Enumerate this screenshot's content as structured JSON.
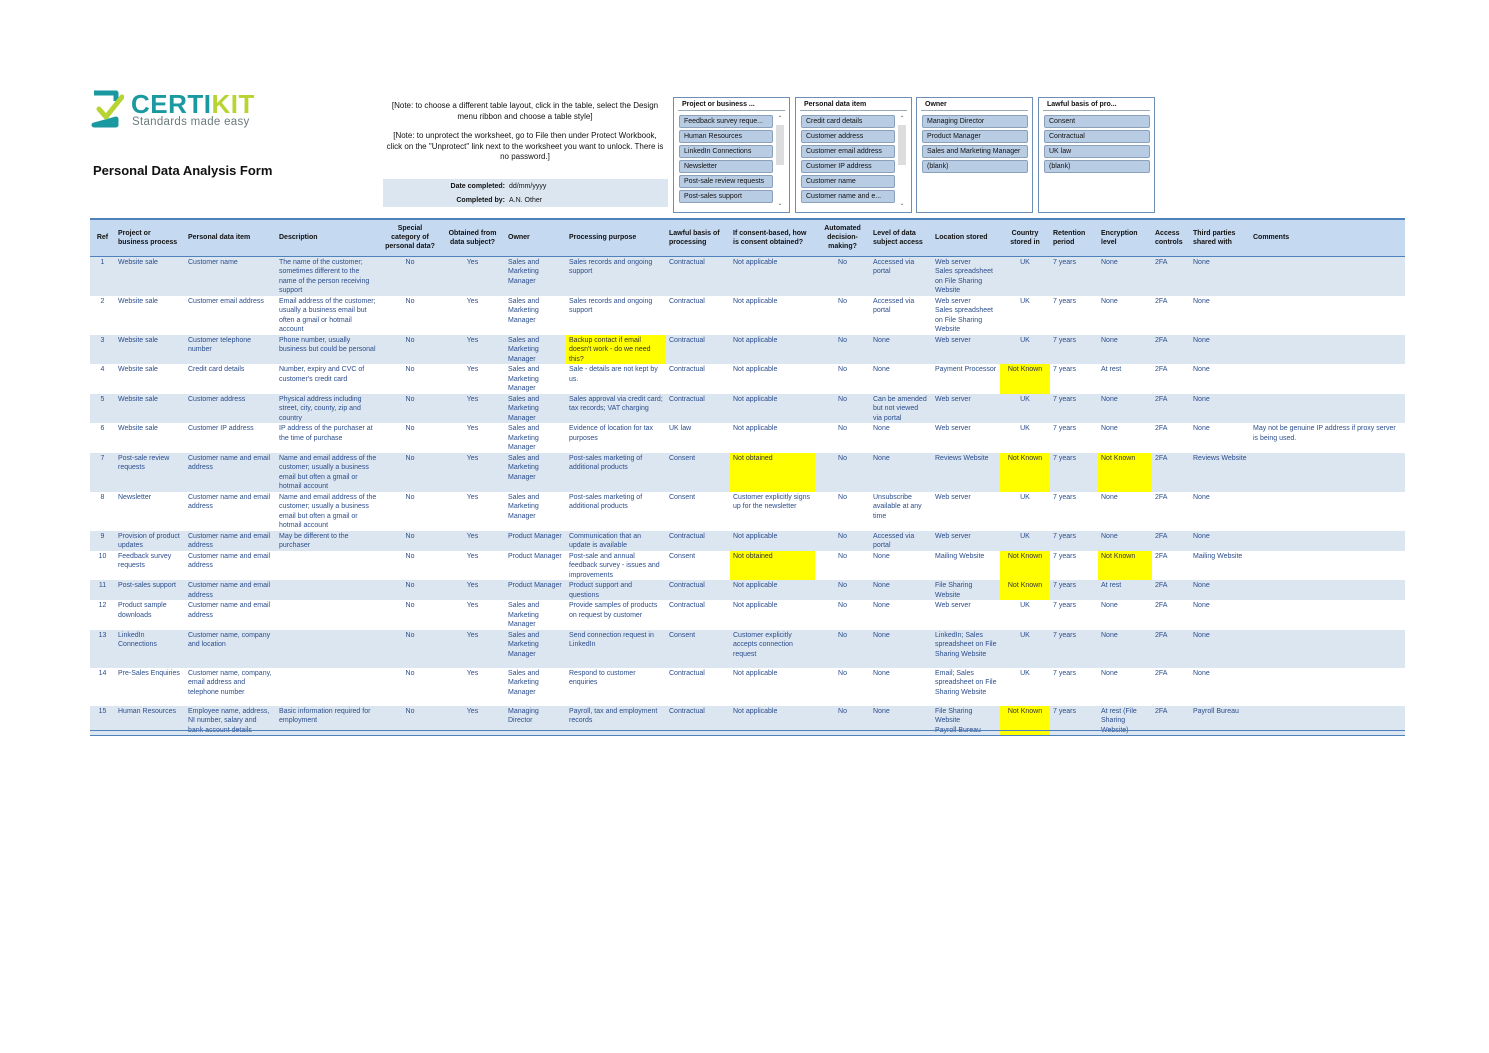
{
  "logo": {
    "brand_main": "CERTI",
    "brand_accent": "KIT",
    "tagline": "Standards made easy",
    "colors": {
      "teal": "#1a9aa0",
      "lime": "#b7d433"
    }
  },
  "page_title": "Personal Data Analysis Form",
  "notes": {
    "table_layout": "[Note: to choose a different table layout,  click in the table, select the Design menu ribbon and choose a  table style]",
    "unprotect": "[Note: to unprotect the worksheet, go to File then under Protect Workbook, click on the \"Unprotect\" link next to the worksheet you want to unlock. There is no password.]"
  },
  "completion": {
    "date_label": "Date completed:",
    "date_value": "dd/mm/yyyy",
    "by_label": "Completed by:",
    "by_value": "A.N. Other"
  },
  "slicers": [
    {
      "title": "Project or business ...",
      "items": [
        "Feedback survey reque...",
        "Human Resources",
        "LinkedIn Connections",
        "Newsletter",
        "Post-sale review requests",
        "Post-sales support"
      ],
      "scroll": true
    },
    {
      "title": "Personal data item",
      "items": [
        "Credit card details",
        "Customer address",
        "Customer email address",
        "Customer IP address",
        "Customer name",
        "Customer name and e..."
      ],
      "scroll": true
    },
    {
      "title": "Owner",
      "items": [
        "Managing Director",
        "Product Manager",
        "Sales and Marketing Manager",
        "(blank)"
      ],
      "scroll": false
    },
    {
      "title": "Lawful basis of pro...",
      "items": [
        "Consent",
        "Contractual",
        "UK law",
        "(blank)"
      ],
      "scroll": false
    }
  ],
  "highlight_color": "#ffff00",
  "table": {
    "headers": [
      "Ref",
      "Project or business process",
      "Personal data item",
      "Description",
      "Special category of personal data?",
      "Obtained from data subject?",
      "Owner",
      "Processing purpose",
      "Lawful basis of processing",
      "If consent-based, how is consent obtained?",
      "Automated decision-making?",
      "Level of data subject access",
      "Location stored",
      "Country stored in",
      "Retention period",
      "Encryption level",
      "Access controls",
      "Third parties shared with",
      "Comments"
    ],
    "rows": [
      {
        "cells": [
          "1",
          "Website sale",
          "Customer name",
          "The name of the customer; sometimes different to the name of the person receiving support",
          "No",
          "Yes",
          "Sales and Marketing Manager",
          "Sales records and ongoing support",
          "Contractual",
          "Not applicable",
          "No",
          "Accessed via portal",
          "Web server\nSales spreadsheet on File Sharing Website",
          "UK",
          "7 years",
          "None",
          "2FA",
          "None",
          ""
        ],
        "highlight": []
      },
      {
        "cells": [
          "2",
          "Website sale",
          "Customer email address",
          "Email address of the customer; usually a business email but often a gmail or hotmail account",
          "No",
          "Yes",
          "Sales and Marketing Manager",
          "Sales records and ongoing support",
          "Contractual",
          "Not applicable",
          "No",
          "Accessed via portal",
          "Web server\nSales spreadsheet on File Sharing Website",
          "UK",
          "7 years",
          "None",
          "2FA",
          "None",
          ""
        ],
        "highlight": []
      },
      {
        "cells": [
          "3",
          "Website sale",
          "Customer telephone number",
          "Phone number, usually business but could be personal",
          "No",
          "Yes",
          "Sales and Marketing Manager",
          "Backup contact if email doesn't work - do we need this?",
          "Contractual",
          "Not applicable",
          "No",
          "None",
          "Web server",
          "UK",
          "7 years",
          "None",
          "2FA",
          "None",
          ""
        ],
        "highlight": [
          7
        ]
      },
      {
        "cells": [
          "4",
          "Website sale",
          "Credit card details",
          "Number, expiry and CVC of customer's credit card",
          "No",
          "Yes",
          "Sales and Marketing Manager",
          "Sale - details are not kept by us.",
          "Contractual",
          "Not applicable",
          "No",
          "None",
          "Payment Processor",
          "Not Known",
          "7 years",
          "At rest",
          "2FA",
          "None",
          ""
        ],
        "highlight": [
          13
        ]
      },
      {
        "cells": [
          "5",
          "Website sale",
          "Customer address",
          "Physical address including street, city, county, zip and country",
          "No",
          "Yes",
          "Sales and Marketing Manager",
          "Sales approval via credit card; tax records; VAT charging",
          "Contractual",
          "Not applicable",
          "No",
          "Can be amended but not viewed via portal",
          "Web server",
          "UK",
          "7 years",
          "None",
          "2FA",
          "None",
          ""
        ],
        "highlight": []
      },
      {
        "cells": [
          "6",
          "Website sale",
          "Customer IP address",
          "IP address of the purchaser at the time of purchase",
          "No",
          "Yes",
          "Sales and Marketing Manager",
          "Evidence of location for tax purposes",
          "UK law",
          "Not applicable",
          "No",
          "None",
          "Web server",
          "UK",
          "7 years",
          "None",
          "2FA",
          "None",
          "May not be genuine IP address if proxy server is being used."
        ],
        "highlight": []
      },
      {
        "cells": [
          "7",
          "Post-sale review requests",
          "Customer name and email address",
          "Name and email address of the customer; usually a business email but often a gmail or hotmail account",
          "No",
          "Yes",
          "Sales and Marketing Manager",
          "Post-sales marketing of additional products",
          "Consent",
          "Not obtained",
          "No",
          "None",
          "Reviews Website",
          "Not Known",
          "7 years",
          "Not Known",
          "2FA",
          "Reviews Website",
          ""
        ],
        "highlight": [
          9,
          13,
          15
        ]
      },
      {
        "cells": [
          "8",
          "Newsletter",
          "Customer name and email address",
          "Name and email address of the customer; usually a business email but often a gmail or hotmail account",
          "No",
          "Yes",
          "Sales and Marketing Manager",
          "Post-sales marketing of additional products",
          "Consent",
          "Customer explicitly signs up for the newsletter",
          "No",
          "Unsubscribe available at any time",
          "Web server",
          "UK",
          "7 years",
          "None",
          "2FA",
          "None",
          ""
        ],
        "highlight": []
      },
      {
        "cells": [
          "9",
          "Provision of product updates",
          "Customer name and email address",
          "May be different to the purchaser",
          "No",
          "Yes",
          "Product Manager",
          "Communication that an update is available",
          "Contractual",
          "Not applicable",
          "No",
          "Accessed via portal",
          "Web server",
          "UK",
          "7 years",
          "None",
          "2FA",
          "None",
          ""
        ],
        "highlight": []
      },
      {
        "cells": [
          "10",
          "Feedback survey requests",
          "Customer name and email address",
          "",
          "No",
          "Yes",
          "Product Manager",
          "Post-sale and annual feedback survey - issues and improvements",
          "Consent",
          "Not obtained",
          "No",
          "None",
          "Mailing Website",
          "Not Known",
          "7 years",
          "Not Known",
          "2FA",
          "Mailing Website",
          ""
        ],
        "highlight": [
          9,
          13,
          15
        ]
      },
      {
        "cells": [
          "11",
          "Post-sales support",
          "Customer name and email address",
          "",
          "No",
          "Yes",
          "Product Manager",
          "Product support and questions",
          "Contractual",
          "Not applicable",
          "No",
          "None",
          "File Sharing Website",
          "Not Known",
          "7 years",
          "At rest",
          "2FA",
          "None",
          ""
        ],
        "highlight": [
          13
        ]
      },
      {
        "cells": [
          "12",
          "Product sample downloads",
          "Customer name and email address",
          "",
          "No",
          "Yes",
          "Sales and Marketing Manager",
          "Provide samples of products on request by customer",
          "Contractual",
          "Not applicable",
          "No",
          "None",
          "Web server",
          "UK",
          "7 years",
          "None",
          "2FA",
          "None",
          ""
        ],
        "highlight": []
      },
      {
        "cells": [
          "13",
          "LinkedIn Connections",
          "Customer name, company and location",
          "",
          "No",
          "Yes",
          "Sales and Marketing Manager",
          "Send connection request in LinkedIn",
          "Consent",
          "Customer explicitly accepts connection request",
          "No",
          "None",
          "LinkedIn; Sales spreadsheet on File Sharing Website",
          "UK",
          "7 years",
          "None",
          "2FA",
          "None",
          ""
        ],
        "highlight": []
      },
      {
        "cells": [
          "14",
          "Pre-Sales Enquiries",
          "Customer name, company, email address and telephone number",
          "",
          "No",
          "Yes",
          "Sales and Marketing Manager",
          "Respond to customer enquiries",
          "Contractual",
          "Not applicable",
          "No",
          "None",
          "Email; Sales spreadsheet on File Sharing Website",
          "UK",
          "7 years",
          "None",
          "2FA",
          "None",
          ""
        ],
        "highlight": []
      },
      {
        "cells": [
          "15",
          "Human Resources",
          "Employee name, address, NI number, salary and bank account details",
          "Basic information required for employment",
          "No",
          "Yes",
          "Managing Director",
          "Payroll, tax and employment records",
          "Contractual",
          "Not applicable",
          "No",
          "None",
          "File Sharing Website\nPayroll Bureau",
          "Not Known",
          "7 years",
          "At rest (File Sharing Website)",
          "2FA",
          "Payroll Bureau",
          ""
        ],
        "highlight": [
          13
        ]
      }
    ]
  }
}
